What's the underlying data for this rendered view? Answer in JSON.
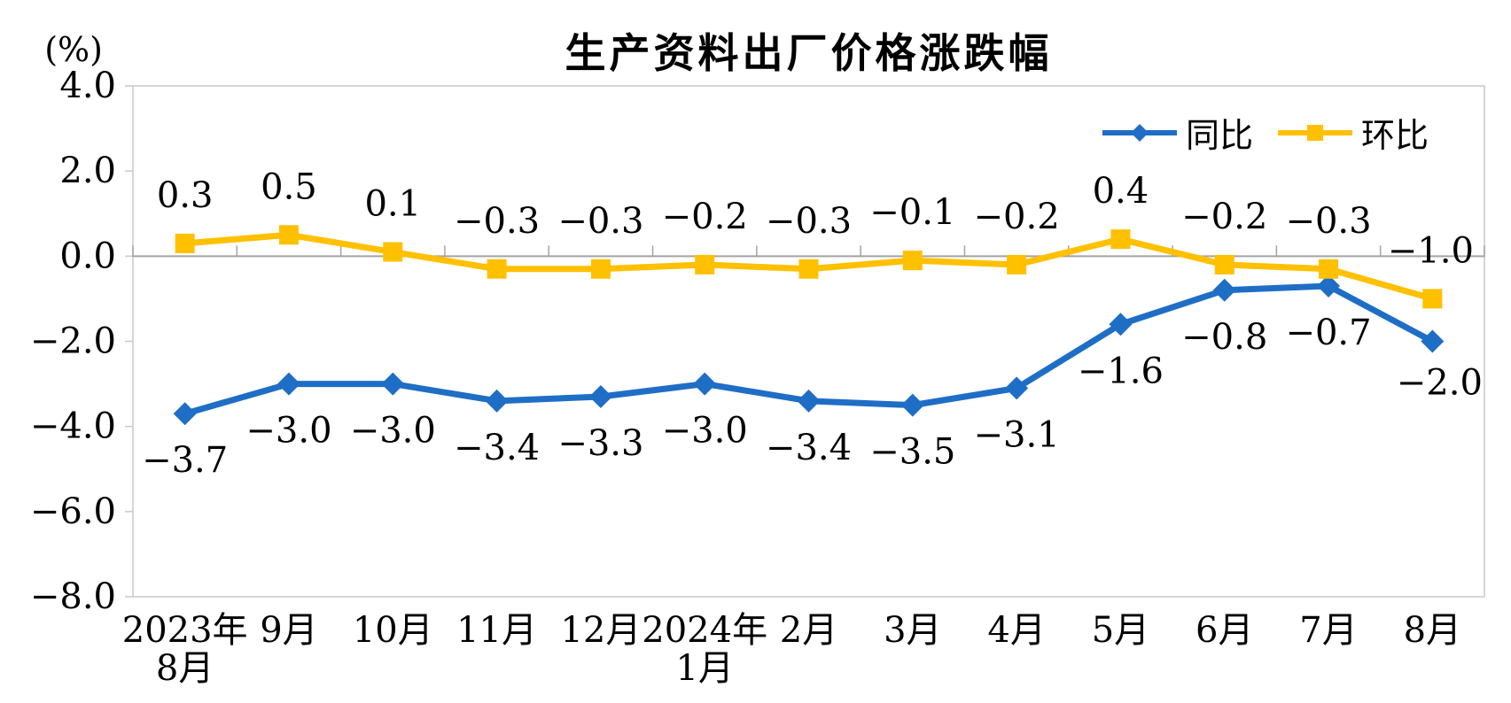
{
  "title": "生产资料出厂价格涨跌幅",
  "unit_label": "(%)",
  "colors": {
    "tongbi_blue": "#1f6ec6",
    "huanbi_yellow": "#ffc000",
    "plot_border": "#c9c9c9",
    "axis_line": "#a3a3a3",
    "text": "#000000",
    "background": "#ffffff"
  },
  "legend": {
    "items": [
      {
        "id": "tongbi",
        "label": "同比"
      },
      {
        "id": "huanbi",
        "label": "环比"
      }
    ]
  },
  "chart_data": {
    "type": "line",
    "title": "生产资料出厂价格涨跌幅",
    "xlabel": "",
    "ylabel": "(%)",
    "grid": false,
    "legend_position": "top-right",
    "ylim": [
      -8.0,
      4.0
    ],
    "y_ticks": [
      {
        "label": "4.0",
        "value": 4
      },
      {
        "label": "2.0",
        "value": 2
      },
      {
        "label": "0.0",
        "value": 0
      },
      {
        "label": "−2.0",
        "value": -2
      },
      {
        "label": "−4.0",
        "value": -4
      },
      {
        "label": "−6.0",
        "value": -6
      },
      {
        "label": "−8.0",
        "value": -8
      }
    ],
    "categories": [
      "2023年\n8月",
      "9月",
      "10月",
      "11月",
      "12月",
      "2024年\n1月",
      "2月",
      "3月",
      "4月",
      "5月",
      "6月",
      "7月",
      "8月"
    ],
    "series": [
      {
        "id": "tongbi",
        "name": "同比",
        "color": "#1f6ec6",
        "marker": "diamond",
        "values": [
          -3.7,
          -3.0,
          -3.0,
          -3.4,
          -3.3,
          -3.0,
          -3.4,
          -3.5,
          -3.1,
          -1.6,
          -0.8,
          -0.7,
          -2.0
        ],
        "labels": [
          "−3.7",
          "−3.0",
          "−3.0",
          "−3.4",
          "−3.3",
          "−3.0",
          "−3.4",
          "−3.5",
          "−3.1",
          "−1.6",
          "−0.8",
          "−0.7",
          "−2.0"
        ]
      },
      {
        "id": "huanbi",
        "name": "环比",
        "color": "#ffc000",
        "marker": "square",
        "values": [
          0.3,
          0.5,
          0.1,
          -0.3,
          -0.3,
          -0.2,
          -0.3,
          -0.1,
          -0.2,
          0.4,
          -0.2,
          -0.3,
          -1.0
        ],
        "labels": [
          "0.3",
          "0.5",
          "0.1",
          "−0.3",
          "−0.3",
          "−0.2",
          "−0.3",
          "−0.1",
          "−0.2",
          "0.4",
          "−0.2",
          "−0.3",
          "−1.0"
        ]
      }
    ]
  }
}
